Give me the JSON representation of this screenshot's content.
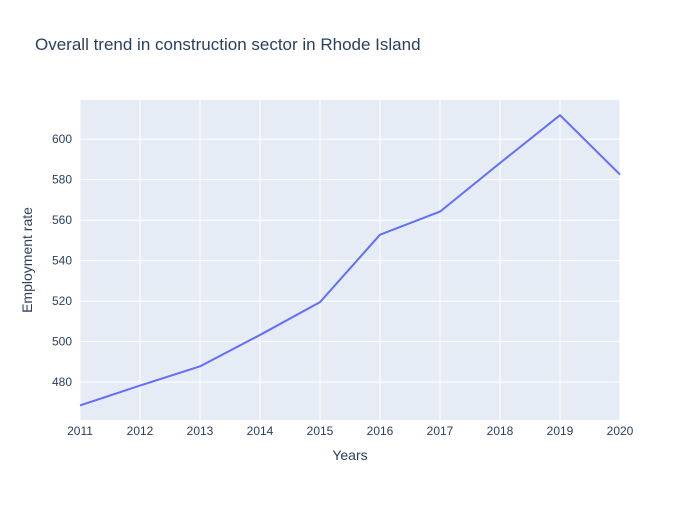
{
  "chart_data": {
    "type": "line",
    "title": "Overall trend in construction sector in Rhode Island",
    "xlabel": "Years",
    "ylabel": "Employment rate",
    "x": [
      2011,
      2012,
      2013,
      2014,
      2015,
      2016,
      2017,
      2018,
      2019,
      2020
    ],
    "series": [
      {
        "values": [
          468.5,
          478.3,
          487.8,
          503.3,
          519.5,
          552.8,
          564.2,
          588.2,
          611.8,
          582.5
        ]
      }
    ],
    "x_ticks": [
      "2011",
      "2012",
      "2013",
      "2014",
      "2015",
      "2016",
      "2017",
      "2018",
      "2019",
      "2020"
    ],
    "y_ticks": [
      "480",
      "500",
      "520",
      "540",
      "560",
      "580",
      "600"
    ],
    "xlim": [
      2011,
      2020
    ],
    "ylim": [
      461.3,
      619.3
    ],
    "grid": true,
    "legend": "none",
    "colors": {
      "plot_background": "#e5ecf6",
      "grid": "#ffffff",
      "line": "#636efa",
      "text": "#2a3f5f"
    }
  }
}
